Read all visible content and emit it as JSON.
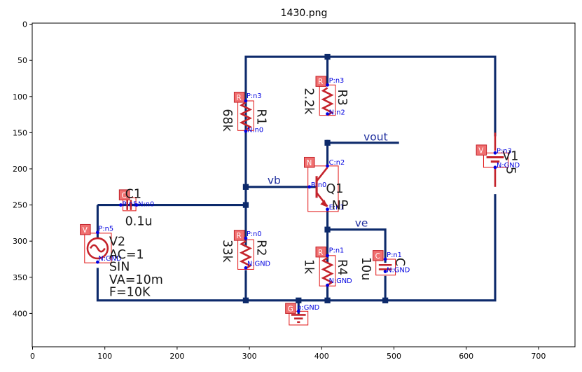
{
  "title": "1430.png",
  "x_ticks": [
    "0",
    "100",
    "200",
    "300",
    "400",
    "500",
    "600",
    "700"
  ],
  "y_ticks": [
    "0",
    "50",
    "100",
    "150",
    "200",
    "250",
    "300",
    "350",
    "400"
  ],
  "colors": {
    "wire": "#0d2a6b",
    "component": "#c4232b",
    "box": "#e21b1b",
    "tag_fill": "#f07070",
    "pin_text": "#0000e0",
    "net_label": "#1f2f9e"
  },
  "components": {
    "r1": {
      "tag": "R",
      "name": "R1",
      "value": "68k",
      "pin_p": "P:n3",
      "pin_n": "N:n0"
    },
    "r2": {
      "tag": "R",
      "name": "R2",
      "value": "33k",
      "pin_p": "P:n0",
      "pin_n": "N:GND"
    },
    "r3": {
      "tag": "R",
      "name": "R3",
      "value": "2.2k",
      "pin_p": "P:n3",
      "pin_n": "N:n2"
    },
    "r4": {
      "tag": "R",
      "name": "R4",
      "value": "1k",
      "pin_p": "P:n1",
      "pin_n": "N:GND"
    },
    "c1": {
      "tag": "C",
      "name": "C1",
      "value": "0.1u",
      "pin_p": "P:n5",
      "pin_n": "N:n0"
    },
    "c2": {
      "tag": "C",
      "name": "C",
      "value": "10u",
      "pin_p": "P:n1",
      "pin_n": "N:GND"
    },
    "q1": {
      "tag": "N",
      "name": "Q1",
      "type": "NP",
      "pin_c": "C:n2",
      "pin_b": "B:n0",
      "pin_e": "E:n1"
    },
    "v1": {
      "tag": "V",
      "name": "V1",
      "value": "5",
      "pin_p": "P:n3",
      "pin_n": "N:GND"
    },
    "v2": {
      "tag": "V",
      "name": "V2",
      "line1": "AC=1",
      "line2": "SIN",
      "line3": "VA=10m",
      "line4": "F=10K",
      "pin_p": "P:n5",
      "pin_n": "N:GND"
    },
    "gnd": {
      "tag": "G",
      "pin": "p:GND"
    }
  },
  "net_labels": {
    "vout": "vout",
    "vb": "vb",
    "ve": "ve"
  }
}
